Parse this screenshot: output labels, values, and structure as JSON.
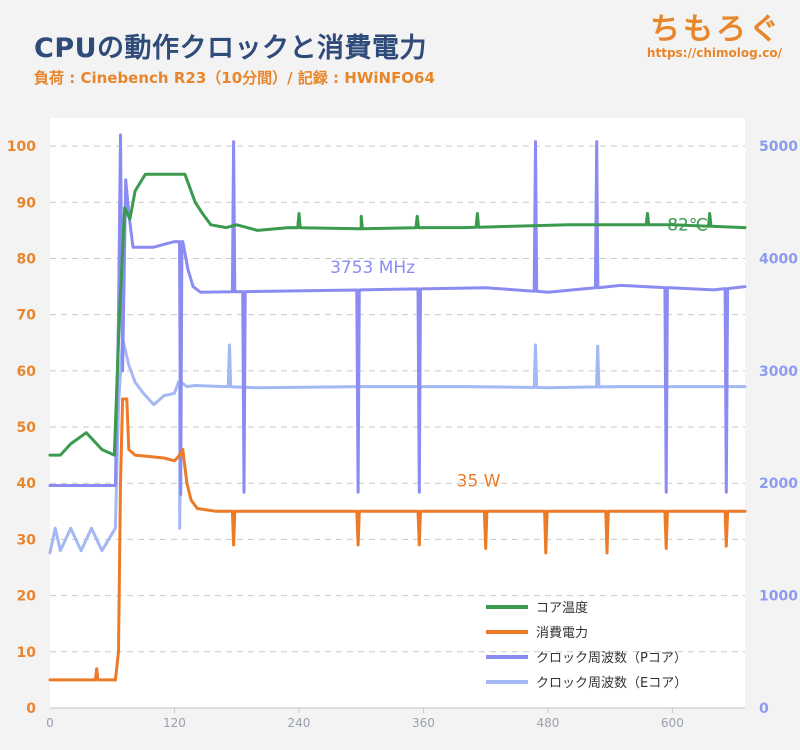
{
  "header": {
    "title": "CPUの動作クロックと消費電力",
    "subtitle": "負荷 : Cinebench R23（10分間）/ 記録 : HWiNFO64",
    "brand": "ちもろぐ",
    "brand_url": "https://chimolog.co/"
  },
  "colors": {
    "temp": "#3a9a4e",
    "power": "#ec7b28",
    "pclock": "#8b8cf2",
    "eclock": "#a4b8f3",
    "left_axis": "#e8862b",
    "right_axis": "#8b9cf0",
    "grid": "#c9c9c9"
  },
  "chart_data": {
    "type": "line",
    "xlim": [
      0,
      670
    ],
    "xticks": [
      0,
      120,
      240,
      360,
      480,
      600
    ],
    "y_left": {
      "lim": [
        0,
        105
      ],
      "ticks": [
        0,
        10,
        20,
        30,
        40,
        50,
        60,
        70,
        80,
        90,
        100
      ]
    },
    "y_right": {
      "lim": [
        0,
        5250
      ],
      "ticks": [
        0,
        1000,
        2000,
        3000,
        4000,
        5000
      ]
    },
    "annotations": [
      {
        "text": "82℃",
        "x": 595,
        "y": 85,
        "axis": "left",
        "color_key": "temp"
      },
      {
        "text": "3753 MHz",
        "x": 270,
        "y": 3870,
        "axis": "right",
        "color_key": "pclock"
      },
      {
        "text": "35 W",
        "x": 392,
        "y": 1970,
        "axis": "right",
        "color_key": "power"
      }
    ],
    "legend": {
      "position": "bottom-right",
      "entries": [
        {
          "label": "コア温度",
          "color_key": "temp"
        },
        {
          "label": "消費電力",
          "color_key": "power"
        },
        {
          "label": "クロック周波数（Pコア）",
          "color_key": "pclock"
        },
        {
          "label": "クロック周波数（Eコア）",
          "color_key": "eclock"
        }
      ]
    },
    "series": [
      {
        "key": "temp",
        "axis": "left",
        "points": [
          [
            0,
            45
          ],
          [
            10,
            45
          ],
          [
            20,
            47
          ],
          [
            35,
            49
          ],
          [
            50,
            46
          ],
          [
            62,
            45
          ],
          [
            67,
            70
          ],
          [
            72,
            89
          ],
          [
            77,
            87
          ],
          [
            82,
            92
          ],
          [
            92,
            95
          ],
          [
            110,
            95
          ],
          [
            130,
            95
          ],
          [
            140,
            90
          ],
          [
            147,
            88
          ],
          [
            155,
            86
          ],
          [
            170,
            85.5
          ],
          [
            180,
            86
          ],
          [
            200,
            85
          ],
          [
            230,
            85.5
          ],
          [
            300,
            85.3
          ],
          [
            360,
            85.5
          ],
          [
            400,
            85.5
          ],
          [
            460,
            85.8
          ],
          [
            500,
            86
          ],
          [
            550,
            86
          ],
          [
            600,
            86
          ],
          [
            640,
            85.7
          ],
          [
            670,
            85.5
          ]
        ],
        "spikes": [
          [
            240,
            88
          ],
          [
            300,
            87.5
          ],
          [
            354,
            87.5
          ],
          [
            412,
            88
          ],
          [
            576,
            88
          ],
          [
            636,
            88
          ]
        ]
      },
      {
        "key": "power",
        "axis": "left",
        "points": [
          [
            0,
            5
          ],
          [
            20,
            5
          ],
          [
            40,
            5
          ],
          [
            63,
            5
          ],
          [
            66,
            10
          ],
          [
            68,
            40
          ],
          [
            70,
            55
          ],
          [
            74,
            55
          ],
          [
            76,
            46
          ],
          [
            82,
            45
          ],
          [
            110,
            44.5
          ],
          [
            120,
            44
          ],
          [
            125,
            45
          ],
          [
            128,
            46
          ],
          [
            132,
            40
          ],
          [
            136,
            37
          ],
          [
            142,
            35.5
          ],
          [
            160,
            35
          ],
          [
            670,
            35
          ]
        ],
        "spikes": [
          [
            45,
            7
          ],
          [
            177,
            -30
          ],
          [
            297,
            -30
          ],
          [
            356,
            -30
          ],
          [
            420,
            -33
          ],
          [
            478,
            -37
          ],
          [
            537,
            -37
          ],
          [
            594,
            -33
          ],
          [
            652,
            -31
          ]
        ]
      },
      {
        "key": "pclock",
        "axis": "right",
        "points": [
          [
            0,
            1980
          ],
          [
            30,
            1980
          ],
          [
            63,
            1980
          ],
          [
            66,
            3500
          ],
          [
            68,
            5100
          ],
          [
            70,
            3000
          ],
          [
            73,
            4700
          ],
          [
            76,
            4400
          ],
          [
            80,
            4100
          ],
          [
            100,
            4100
          ],
          [
            120,
            4150
          ],
          [
            128,
            4150
          ],
          [
            133,
            3900
          ],
          [
            138,
            3750
          ],
          [
            145,
            3700
          ],
          [
            300,
            3720
          ],
          [
            420,
            3740
          ],
          [
            480,
            3700
          ],
          [
            550,
            3760
          ],
          [
            640,
            3720
          ],
          [
            670,
            3750
          ]
        ],
        "spikes": [
          [
            126,
            1900
          ],
          [
            177,
            5040
          ],
          [
            187,
            1920
          ],
          [
            297,
            1920
          ],
          [
            356,
            1920
          ],
          [
            468,
            5040
          ],
          [
            527,
            5040
          ],
          [
            594,
            1920
          ],
          [
            652,
            1920
          ]
        ]
      },
      {
        "key": "eclock",
        "axis": "right",
        "points": [
          [
            0,
            1380
          ],
          [
            5,
            1600
          ],
          [
            10,
            1400
          ],
          [
            20,
            1600
          ],
          [
            30,
            1400
          ],
          [
            40,
            1600
          ],
          [
            50,
            1400
          ],
          [
            63,
            1600
          ],
          [
            66,
            2700
          ],
          [
            70,
            3290
          ],
          [
            76,
            3050
          ],
          [
            82,
            2900
          ],
          [
            90,
            2800
          ],
          [
            100,
            2700
          ],
          [
            110,
            2780
          ],
          [
            120,
            2800
          ],
          [
            125,
            2900
          ],
          [
            132,
            2860
          ],
          [
            140,
            2870
          ],
          [
            200,
            2850
          ],
          [
            300,
            2860
          ],
          [
            400,
            2860
          ],
          [
            480,
            2850
          ],
          [
            550,
            2860
          ],
          [
            620,
            2860
          ],
          [
            670,
            2860
          ]
        ],
        "spikes": [
          [
            125,
            1600
          ],
          [
            173,
            3230
          ],
          [
            468,
            3230
          ],
          [
            528,
            3220
          ]
        ]
      }
    ]
  }
}
